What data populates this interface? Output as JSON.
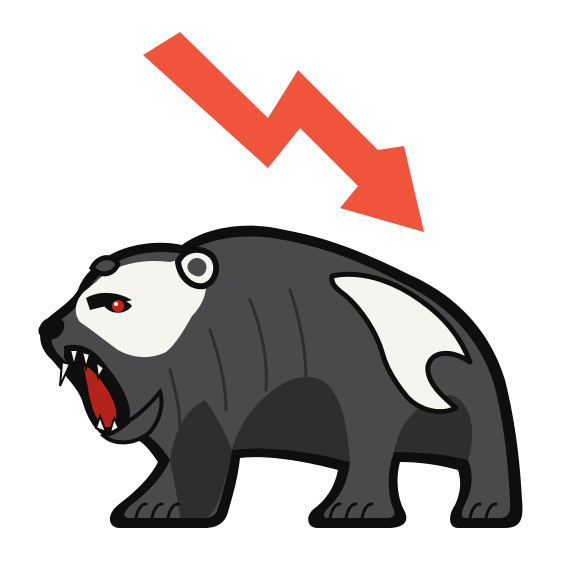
{
  "illustration": {
    "subject": "bear-market-icon",
    "icons": [
      "down-trend-arrow-icon",
      "roaring-bear-icon"
    ],
    "colors": {
      "background": "#ffffff",
      "arrow": "#f0553c",
      "bear_body": "#4a4a4c",
      "bear_shadow": "#2e2e30",
      "outline": "#0e0e0e",
      "fur_light": "#f6f4ee",
      "eye": "#c8201c",
      "mouth": "#b3231c",
      "teeth": "#f4f1e8"
    }
  }
}
